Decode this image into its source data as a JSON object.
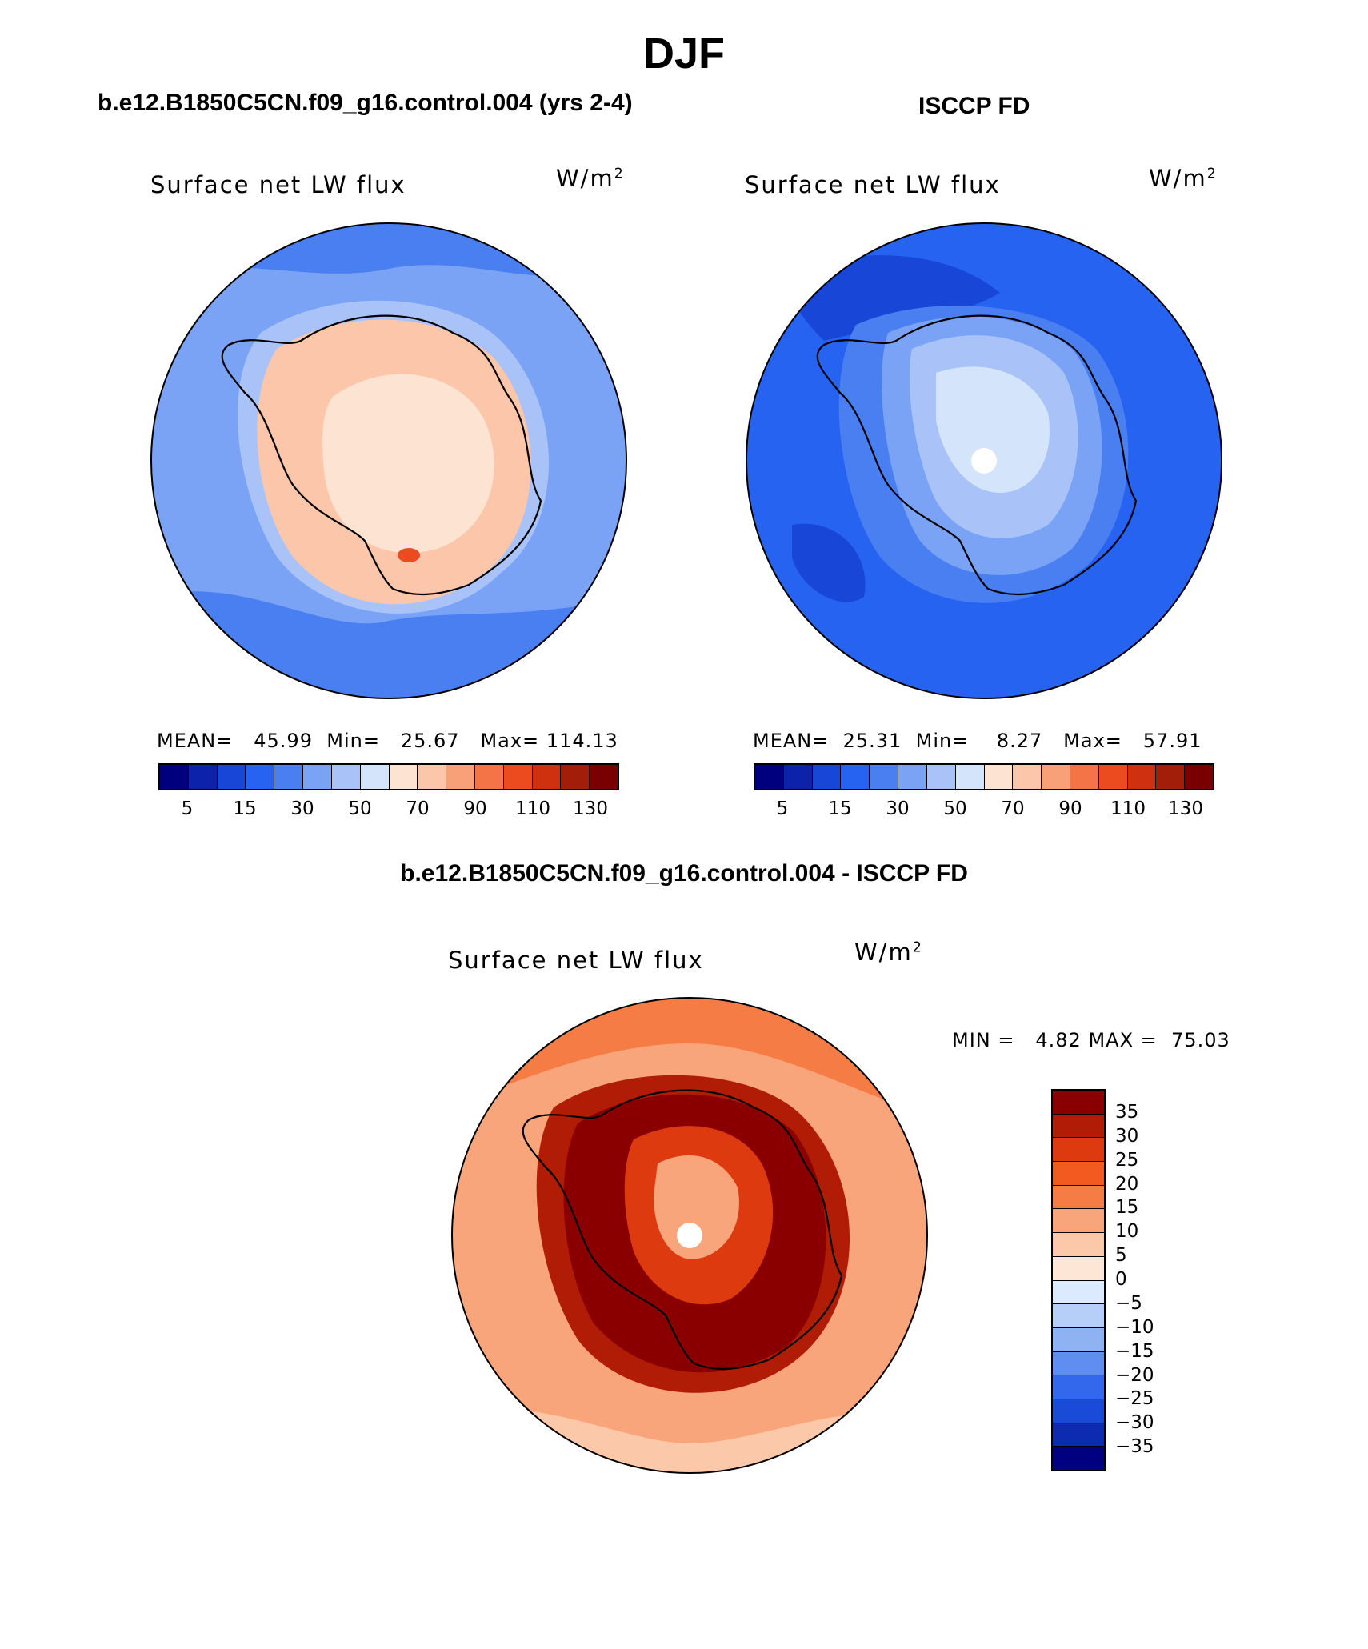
{
  "figure": {
    "title": "DJF",
    "units_base": "W/m",
    "units_exp": "2",
    "variable": "Surface net LW flux"
  },
  "panels": {
    "model": {
      "title": "b.e12.B1850C5CN.f09_g16.control.004 (yrs 2-4)",
      "mean_label": "MEAN=",
      "mean": "45.99",
      "min_label": "Min=",
      "min": "25.67",
      "max_label": "Max=",
      "max": "114.13"
    },
    "obs": {
      "title": "ISCCP FD",
      "mean_label": "MEAN=",
      "mean": "25.31",
      "min_label": "Min=",
      "min": "8.27",
      "max_label": "Max=",
      "max": "57.91"
    },
    "diff": {
      "title": "b.e12.B1850C5CN.f09_g16.control.004 - ISCCP FD",
      "min_label": "MIN =",
      "min": "4.82",
      "max_label": "MAX =",
      "max": "75.03"
    }
  },
  "colorbar_abs": {
    "colors": [
      "#00007f",
      "#0c22aa",
      "#1846d6",
      "#2563f0",
      "#4a7ff2",
      "#7aa2f5",
      "#a9c3f8",
      "#d4e4fb",
      "#fde4d2",
      "#fbc6aa",
      "#f8a078",
      "#f47448",
      "#ec4b20",
      "#cf3010",
      "#a31e08",
      "#780000"
    ],
    "ticks": [
      "5",
      "15",
      "30",
      "50",
      "70",
      "90",
      "110",
      "130"
    ]
  },
  "colorbar_diff": {
    "colors": [
      "#8a0000",
      "#b01c05",
      "#dd3a10",
      "#f25a20",
      "#f57d45",
      "#f8a57c",
      "#fbc8aa",
      "#fde6d6",
      "#dbeaff",
      "#b6cff8",
      "#8fb2f3",
      "#5f8ef0",
      "#3468ec",
      "#1a4ad8",
      "#0c2bb0",
      "#000080"
    ],
    "ticks": [
      "35",
      "30",
      "25",
      "20",
      "15",
      "10",
      "5",
      "0",
      "−5",
      "−10",
      "−15",
      "−20",
      "−25",
      "−30",
      "−35"
    ]
  },
  "map_fields": {
    "model": {
      "ocean": "#7aa2f5",
      "ocean_inner": "#a9c3f8",
      "ocean_outer_band": "#4a7ff2",
      "continent": "#fbc6aa",
      "continent_interior": "#fde4d2",
      "hotspot": "#ec4b20"
    },
    "obs": {
      "ocean": "#2563f0",
      "ocean_dark": "#1846d6",
      "ocean_light": "#4a7ff2",
      "continent_edge": "#7aa2f5",
      "continent": "#a9c3f8",
      "continent_interior": "#d4e4fb"
    },
    "diff": {
      "ocean": "#f8a57c",
      "ocean_alt": "#f57d45",
      "ocean_light": "#fbc8aa",
      "continent_edge": "#b01c05",
      "continent": "#8a0000",
      "continent_mid": "#dd3a10",
      "continent_interior": "#f8a57c"
    }
  }
}
